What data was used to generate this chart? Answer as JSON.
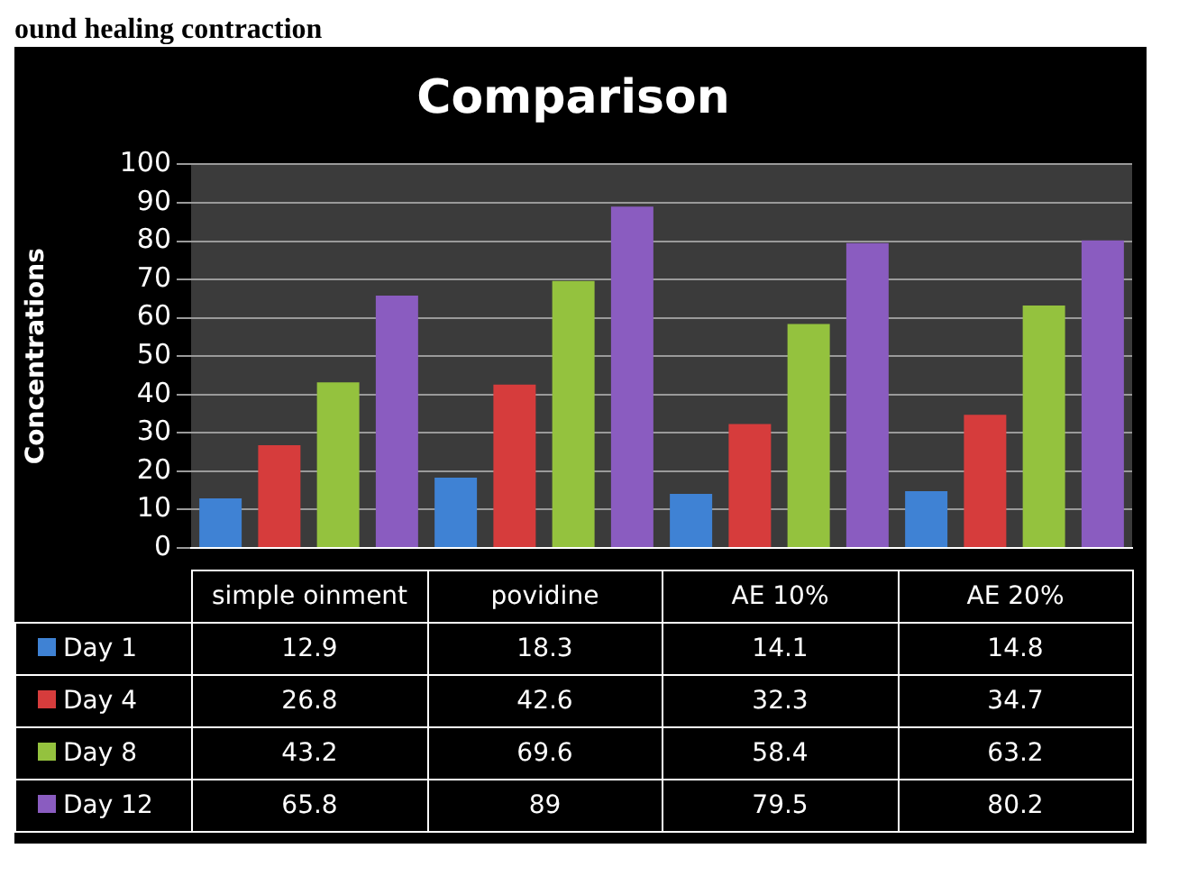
{
  "chart_data": {
    "type": "bar",
    "title": "Comparison",
    "ylabel": "Concentrations",
    "annotations": [
      "ound healing contraction"
    ],
    "categories": [
      "simple oinment",
      "povidine",
      "AE 10%",
      "AE 20%"
    ],
    "series": [
      {
        "name": "Day 1",
        "color": "#3f82d4",
        "values": [
          12.9,
          18.3,
          14.1,
          14.8
        ]
      },
      {
        "name": "Day 4",
        "color": "#d63c3c",
        "values": [
          26.8,
          42.6,
          32.3,
          34.7
        ]
      },
      {
        "name": "Day 8",
        "color": "#94c23e",
        "values": [
          43.2,
          69.6,
          58.4,
          63.2
        ]
      },
      {
        "name": "Day 12",
        "color": "#8a5cc0",
        "values": [
          65.8,
          89,
          79.5,
          80.2
        ]
      }
    ],
    "ylim": [
      0,
      100
    ],
    "yticks": [
      0,
      10,
      20,
      30,
      40,
      50,
      60,
      70,
      80,
      90,
      100
    ],
    "grid": true,
    "legend": "bottom",
    "data_labels": true
  }
}
